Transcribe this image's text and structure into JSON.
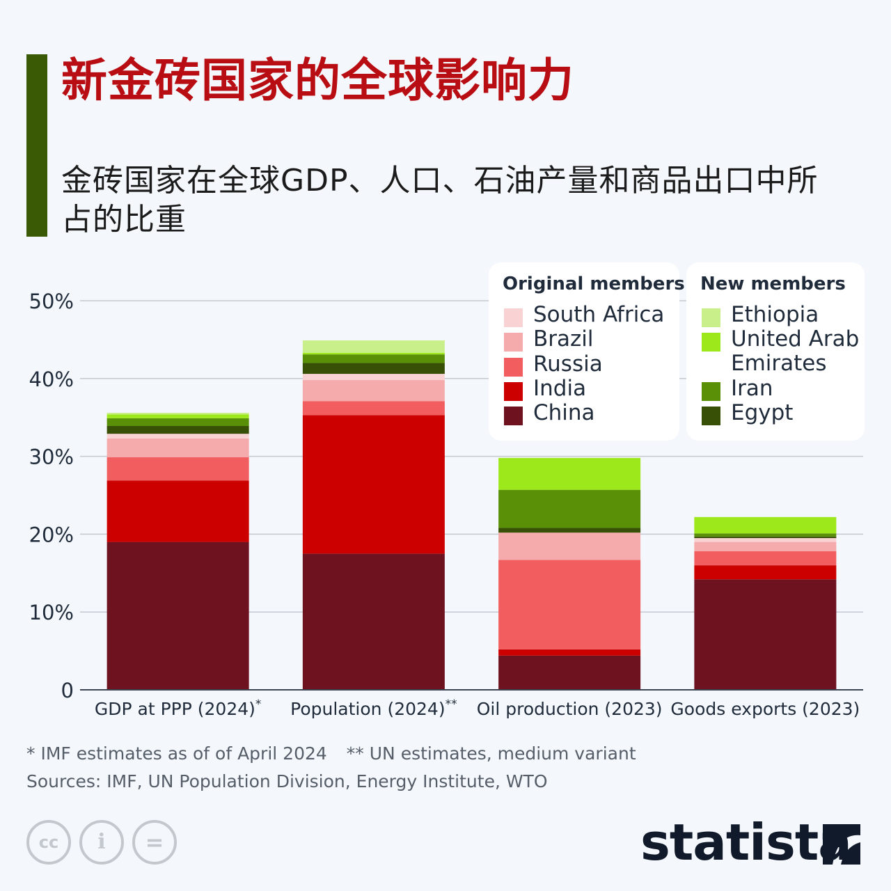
{
  "header": {
    "title": "新金砖国家的全球影响力",
    "subtitle": "金砖国家在全球GDP、人口、石油产量和商品出口中所占的比重"
  },
  "legend": {
    "original": {
      "title": "Original members",
      "items": [
        {
          "label": "South Africa",
          "color": "#f9d3d4"
        },
        {
          "label": "Brazil",
          "color": "#f5aaab"
        },
        {
          "label": "Russia",
          "color": "#f25e5f"
        },
        {
          "label": "India",
          "color": "#cd0000"
        },
        {
          "label": "China",
          "color": "#6e1220"
        }
      ]
    },
    "new": {
      "title": "New members",
      "items": [
        {
          "label": "Ethiopia",
          "color": "#c9ef8a"
        },
        {
          "label": "United Arab Emirates",
          "color": "#9de81a"
        },
        {
          "label": "Iran",
          "color": "#5a9008"
        },
        {
          "label": "Egypt",
          "color": "#375005"
        }
      ]
    }
  },
  "chart_data": {
    "type": "bar",
    "stacked": true,
    "categories": [
      "GDP at PPP (2024)",
      "Population (2024)",
      "Oil production (2023)",
      "Goods exports (2023)"
    ],
    "category_marks": [
      "*",
      "**",
      "",
      ""
    ],
    "ylim": [
      0,
      50
    ],
    "yticks": [
      0,
      10,
      20,
      30,
      40,
      50
    ],
    "ytick_labels": [
      "0",
      "10%",
      "20%",
      "30%",
      "40%",
      "50%"
    ],
    "grid": true,
    "series": [
      {
        "name": "China",
        "color": "#6e1220",
        "values": [
          19.0,
          17.5,
          4.4,
          14.2
        ]
      },
      {
        "name": "India",
        "color": "#cd0000",
        "values": [
          7.9,
          17.8,
          0.8,
          1.8
        ]
      },
      {
        "name": "Russia",
        "color": "#f25e5f",
        "values": [
          3.0,
          1.8,
          11.5,
          1.8
        ]
      },
      {
        "name": "Brazil",
        "color": "#f5aaab",
        "values": [
          2.4,
          2.7,
          3.5,
          1.2
        ]
      },
      {
        "name": "South Africa",
        "color": "#f9d3d4",
        "values": [
          0.6,
          0.8,
          0.0,
          0.5
        ]
      },
      {
        "name": "Egypt",
        "color": "#375005",
        "values": [
          1.0,
          1.4,
          0.6,
          0.2
        ]
      },
      {
        "name": "Iran",
        "color": "#5a9008",
        "values": [
          1.0,
          1.1,
          4.9,
          0.4
        ]
      },
      {
        "name": "United Arab Emirates",
        "color": "#9de81a",
        "values": [
          0.5,
          0.2,
          4.1,
          2.1
        ]
      },
      {
        "name": "Ethiopia",
        "color": "#c9ef8a",
        "values": [
          0.2,
          1.6,
          0.0,
          0.0
        ]
      }
    ]
  },
  "footer": {
    "footnote1": "* IMF estimates as of of April 2024",
    "footnote2": "** UN estimates, medium variant",
    "sources": "Sources: IMF, UN Population Division, Energy Institute, WTO",
    "cc_icons": [
      {
        "icon": "creative-commons-icon",
        "glyph": "cc"
      },
      {
        "icon": "attribution-icon",
        "glyph": "i"
      },
      {
        "icon": "no-derivatives-icon",
        "glyph": "="
      }
    ],
    "brand": "statista"
  }
}
